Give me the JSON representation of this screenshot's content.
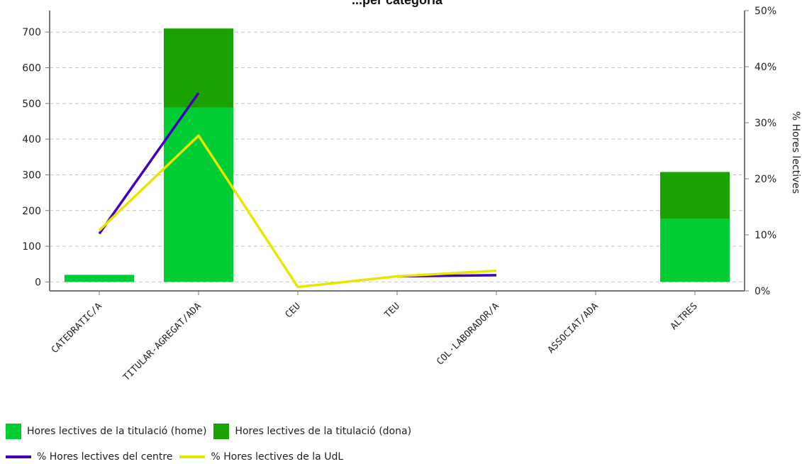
{
  "chart_data": {
    "type": "bar",
    "title": "...per categoria",
    "categories": [
      "CATEDRATIC/A",
      "TITULAR-AGREGAT/ADA",
      "CEU",
      "TEU",
      "COL·LABORADOR/A",
      "ASSOCIAT/ADA",
      "ALTRES"
    ],
    "stacked": true,
    "series": [
      {
        "name": "Hores lectives de la titulació (home)",
        "type": "bar",
        "axis": "left",
        "color": "#00cc33",
        "values": [
          20,
          488,
          0,
          0,
          0,
          0,
          177
        ]
      },
      {
        "name": "Hores lectives de la titulació (dona)",
        "type": "bar",
        "axis": "left",
        "color": "#1aa300",
        "values": [
          0,
          222,
          0,
          0,
          0,
          0,
          131
        ]
      },
      {
        "name": "% Hores lectives del centre",
        "type": "line",
        "axis": "right",
        "color": "#4400bb",
        "values": [
          10.2,
          35.3,
          null,
          2.6,
          2.8,
          null,
          null
        ]
      },
      {
        "name": "% Hores lectives de la UdL",
        "type": "line",
        "axis": "right",
        "color": "#e6e600",
        "values": [
          10.8,
          27.7,
          0.7,
          2.6,
          3.6,
          null,
          null
        ]
      }
    ],
    "y_left": {
      "range": [
        -25,
        760
      ],
      "ticks": [
        0,
        100,
        200,
        300,
        400,
        500,
        600,
        700
      ]
    },
    "y_right": {
      "range": [
        0,
        50
      ],
      "ticks": [
        0,
        10,
        20,
        30,
        40,
        50
      ],
      "tick_suffix": "%",
      "label": "% Hores lectives"
    },
    "grid": true,
    "legend_position": "bottom-left"
  }
}
